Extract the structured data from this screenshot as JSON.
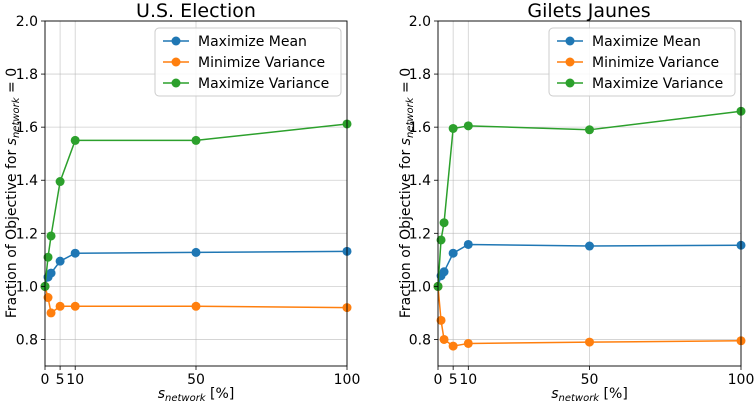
{
  "chart_data": [
    {
      "type": "line",
      "title": "U.S. Election",
      "xlabel_main": "s",
      "xlabel_sub": "network",
      "xlabel_unit": " [%]",
      "ylabel_prefix": "Fraction of Objective for ",
      "ylabel_var": "s",
      "ylabel_sub": "network",
      "ylabel_suffix": " = 0",
      "xlim": [
        0,
        100
      ],
      "ylim": [
        0.7,
        2.0
      ],
      "xticks": [
        0,
        5,
        10,
        50,
        100
      ],
      "yticks": [
        0.8,
        1.0,
        1.2,
        1.4,
        1.6,
        1.8,
        2.0
      ],
      "ytick_labels": [
        "0.8",
        "1.0",
        "1.2",
        "1.4",
        "1.6",
        "1.8",
        "2.0"
      ],
      "legend_position": "top-right",
      "grid": true,
      "series": [
        {
          "name": "Maximize Mean",
          "color": "#1f77b4",
          "x": [
            0,
            1,
            2,
            5,
            10,
            50,
            100
          ],
          "y": [
            1.0,
            1.035,
            1.05,
            1.095,
            1.125,
            1.128,
            1.132
          ]
        },
        {
          "name": "Minimize Variance",
          "color": "#ff7f0e",
          "x": [
            0,
            1,
            2,
            5,
            10,
            50,
            100
          ],
          "y": [
            1.0,
            0.958,
            0.9,
            0.925,
            0.925,
            0.925,
            0.92
          ]
        },
        {
          "name": "Maximize Variance",
          "color": "#2ca02c",
          "x": [
            0,
            1,
            2,
            5,
            10,
            50,
            100
          ],
          "y": [
            1.0,
            1.11,
            1.19,
            1.395,
            1.55,
            1.55,
            1.612
          ]
        }
      ]
    },
    {
      "type": "line",
      "title": "Gilets Jaunes",
      "xlabel_main": "s",
      "xlabel_sub": "network",
      "xlabel_unit": " [%]",
      "ylabel_prefix": "Fraction of Objective for ",
      "ylabel_var": "s",
      "ylabel_sub": "network",
      "ylabel_suffix": " = 0",
      "xlim": [
        0,
        100
      ],
      "ylim": [
        0.7,
        2.0
      ],
      "xticks": [
        0,
        5,
        10,
        50,
        100
      ],
      "yticks": [
        0.8,
        1.0,
        1.2,
        1.4,
        1.6,
        1.8,
        2.0
      ],
      "ytick_labels": [
        "0.8",
        "1.0",
        "1.2",
        "1.4",
        "1.6",
        "1.8",
        "2.0"
      ],
      "legend_position": "top-right",
      "grid": true,
      "series": [
        {
          "name": "Maximize Mean",
          "color": "#1f77b4",
          "x": [
            0,
            1,
            2,
            5,
            10,
            50,
            100
          ],
          "y": [
            1.0,
            1.04,
            1.055,
            1.125,
            1.158,
            1.152,
            1.155
          ]
        },
        {
          "name": "Minimize Variance",
          "color": "#ff7f0e",
          "x": [
            0,
            1,
            2,
            5,
            10,
            50,
            100
          ],
          "y": [
            1.0,
            0.872,
            0.8,
            0.775,
            0.785,
            0.79,
            0.795
          ]
        },
        {
          "name": "Maximize Variance",
          "color": "#2ca02c",
          "x": [
            0,
            1,
            2,
            5,
            10,
            50,
            100
          ],
          "y": [
            1.0,
            1.175,
            1.24,
            1.595,
            1.605,
            1.59,
            1.66
          ]
        }
      ]
    }
  ]
}
